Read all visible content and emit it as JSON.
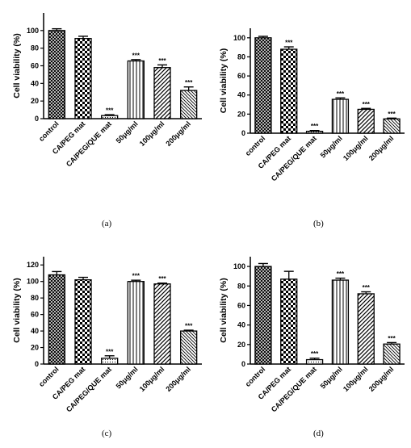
{
  "chart_data": [
    {
      "type": "bar",
      "panel": "(a)",
      "ylabel": "Cell viability (%)",
      "ylim": [
        0,
        120
      ],
      "yticks": [
        0,
        20,
        40,
        60,
        80,
        100
      ],
      "categories": [
        "control",
        "CA/PEG mat",
        "CA/PEG/QUE mat",
        "50μg/ml",
        "100μg/ml",
        "200μg/ml"
      ],
      "values": [
        100,
        91,
        3.5,
        65.5,
        58,
        32
      ],
      "errors": [
        2,
        2.5,
        1,
        1.5,
        3,
        4
      ],
      "significance": [
        "",
        "",
        "***",
        "***",
        "***",
        "***"
      ],
      "patterns": [
        "cross",
        "check",
        "dots",
        "vlines",
        "diag",
        "diag-dense"
      ]
    },
    {
      "type": "bar",
      "panel": "(b)",
      "ylabel": "Cell viability (%)",
      "ylim": [
        0,
        110
      ],
      "yticks": [
        0,
        20,
        40,
        60,
        80,
        100
      ],
      "categories": [
        "control",
        "CA/PEG mat",
        "CA/PEG/QUE mat",
        "50μg/ml",
        "100μg/ml",
        "200μg/ml"
      ],
      "values": [
        100,
        88,
        2,
        35.5,
        25,
        15
      ],
      "errors": [
        1.5,
        2.5,
        0.8,
        1.5,
        1,
        0.8
      ],
      "significance": [
        "",
        "***",
        "***",
        "***",
        "***",
        "***"
      ],
      "patterns": [
        "cross",
        "check",
        "dots",
        "vlines",
        "diag",
        "diag-dense"
      ]
    },
    {
      "type": "bar",
      "panel": "(c)",
      "ylabel": "Cell viability (%)",
      "ylim": [
        0,
        130
      ],
      "yticks": [
        0,
        20,
        40,
        60,
        80,
        100,
        120
      ],
      "categories": [
        "control",
        "CA/PEG mat",
        "CA/PEG/QUE mat",
        "50μg/ml",
        "100μg/ml",
        "200μg/ml"
      ],
      "values": [
        108,
        102,
        7,
        100,
        97,
        40
      ],
      "errors": [
        4,
        3,
        3,
        1.5,
        1,
        1
      ],
      "significance": [
        "",
        "",
        "***",
        "***",
        "***",
        "***"
      ],
      "patterns": [
        "cross",
        "check",
        "dots",
        "vlines",
        "diag",
        "diag-dense"
      ]
    },
    {
      "type": "bar",
      "panel": "(d)",
      "ylabel": "Cell viability (%)",
      "ylim": [
        0,
        110
      ],
      "yticks": [
        0,
        20,
        40,
        60,
        80,
        100
      ],
      "categories": [
        "control",
        "CA/PEG mat",
        "CA/PEG/QUE mat",
        "50μg/ml",
        "100μg/ml",
        "200μg/ml"
      ],
      "values": [
        100,
        87,
        4.5,
        86,
        72,
        20.5
      ],
      "errors": [
        3,
        8,
        1.5,
        2,
        2,
        1.5
      ],
      "significance": [
        "",
        "",
        "***",
        "***",
        "***",
        "***"
      ],
      "patterns": [
        "cross",
        "check",
        "dots",
        "vlines",
        "diag",
        "diag-dense"
      ]
    }
  ],
  "colors": {
    "ink": "#000000",
    "background": "#ffffff"
  }
}
